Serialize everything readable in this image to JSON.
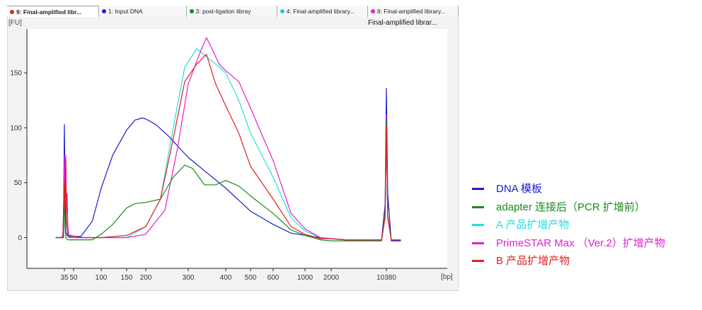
{
  "tabs": [
    {
      "label": "9: Final-amplified libr...",
      "color": "#e02020",
      "active": true
    },
    {
      "label": "1: Input DNA",
      "color": "#1b1bd0",
      "active": false
    },
    {
      "label": "3: post-ligation libray",
      "color": "#1a8a1a",
      "active": false
    },
    {
      "label": "4: Final-amplified library...",
      "color": "#20c8e0",
      "active": false
    },
    {
      "label": "8: Final-amplified library...",
      "color": "#e020d0",
      "active": false
    }
  ],
  "chart_data": {
    "type": "line",
    "subtitle": "Final-amplified librar...",
    "ylabel": "[FU]",
    "xlabel": "[bp]",
    "y_ticks": [
      0,
      50,
      100,
      150
    ],
    "ylim": [
      -28,
      190
    ],
    "x_ticks": [
      "35",
      "50",
      "100",
      "150",
      "200",
      "300",
      "400",
      "500",
      "600",
      "1000",
      "2000",
      "10380"
    ],
    "x_tick_values": [
      35,
      50,
      100,
      150,
      200,
      300,
      400,
      500,
      600,
      1000,
      2000,
      10380
    ],
    "grid": false,
    "legend_position": "right",
    "series": [
      {
        "name": "DNA 模板",
        "color": "#1b1bd0",
        "x": [
          25,
          33,
          34,
          35,
          35.5,
          36,
          37,
          40,
          60,
          80,
          100,
          120,
          150,
          170,
          190,
          200,
          220,
          250,
          280,
          300,
          350,
          400,
          450,
          500,
          600,
          800,
          1000,
          1500,
          2000,
          3000,
          5000,
          9000,
          10000,
          10380,
          10800,
          12000,
          16000
        ],
        "y": [
          0,
          0,
          30,
          103,
          70,
          40,
          5,
          1,
          1,
          15,
          45,
          75,
          98,
          107,
          109,
          108,
          103,
          92,
          80,
          73,
          58,
          45,
          34,
          24,
          12,
          4,
          2,
          0,
          -1,
          -2,
          -2,
          -2,
          30,
          136,
          40,
          -3,
          -3
        ]
      },
      {
        "name": "adapter 连接后（PCR 扩增前）",
        "color": "#1a8a1a",
        "x": [
          25,
          34,
          35,
          36,
          37,
          40,
          60,
          80,
          100,
          120,
          150,
          170,
          200,
          230,
          260,
          290,
          310,
          340,
          370,
          400,
          450,
          500,
          600,
          800,
          1000,
          1500,
          2000,
          3000,
          9000,
          10000,
          10380,
          10800,
          12000,
          16000
        ],
        "y": [
          0,
          0,
          48,
          10,
          0,
          -2,
          -2,
          -2,
          3,
          12,
          27,
          31,
          32,
          35,
          55,
          66,
          63,
          48,
          48,
          52,
          47,
          38,
          22,
          7,
          2,
          -2,
          -3,
          -3,
          -3,
          20,
          107,
          20,
          -2,
          -2
        ]
      },
      {
        "name": "A 产品扩增产物",
        "color": "#20e0e0",
        "x": [
          25,
          32,
          33,
          34,
          35,
          36,
          37,
          38,
          40,
          60,
          100,
          150,
          200,
          230,
          260,
          290,
          320,
          340,
          370,
          400,
          450,
          500,
          600,
          800,
          1000,
          1500,
          2000,
          3000,
          9000,
          10000,
          10380,
          10800,
          12000,
          16000
        ],
        "y": [
          0,
          0,
          3,
          20,
          65,
          30,
          60,
          20,
          3,
          0,
          0,
          0,
          10,
          35,
          100,
          155,
          172,
          166,
          158,
          150,
          125,
          95,
          55,
          18,
          6,
          0,
          -1,
          -2,
          -2,
          20,
          108,
          20,
          -2,
          -2
        ]
      },
      {
        "name": "PrimeSTAR Max （Ver.2）扩增产物",
        "color": "#e020d0",
        "x": [
          25,
          32,
          33,
          34,
          35,
          36,
          37,
          38,
          39,
          40,
          42,
          60,
          100,
          150,
          200,
          240,
          270,
          300,
          330,
          345,
          360,
          380,
          400,
          450,
          500,
          600,
          800,
          1000,
          1500,
          2000,
          3000,
          9000,
          10000,
          10380,
          10800,
          12000,
          16000
        ],
        "y": [
          0,
          0,
          3,
          25,
          75,
          40,
          75,
          20,
          40,
          10,
          0,
          0,
          0,
          0,
          3,
          25,
          80,
          140,
          170,
          182,
          172,
          158,
          152,
          142,
          118,
          70,
          22,
          8,
          0,
          -1,
          -2,
          -2,
          20,
          112,
          20,
          -2,
          -2
        ]
      },
      {
        "name": "B 产品扩增产物",
        "color": "#e02020",
        "x": [
          25,
          32,
          33,
          34,
          35,
          36,
          37,
          38,
          40,
          60,
          100,
          150,
          200,
          230,
          260,
          290,
          320,
          345,
          370,
          400,
          450,
          500,
          600,
          800,
          1000,
          1500,
          2000,
          3000,
          9000,
          10000,
          10380,
          10800,
          12000,
          16000
        ],
        "y": [
          0,
          0,
          2,
          20,
          50,
          25,
          72,
          15,
          2,
          0,
          0,
          2,
          10,
          35,
          90,
          142,
          158,
          167,
          140,
          120,
          95,
          65,
          35,
          10,
          3,
          -1,
          -1,
          -2,
          -2,
          18,
          102,
          18,
          -2,
          -2
        ]
      }
    ]
  }
}
